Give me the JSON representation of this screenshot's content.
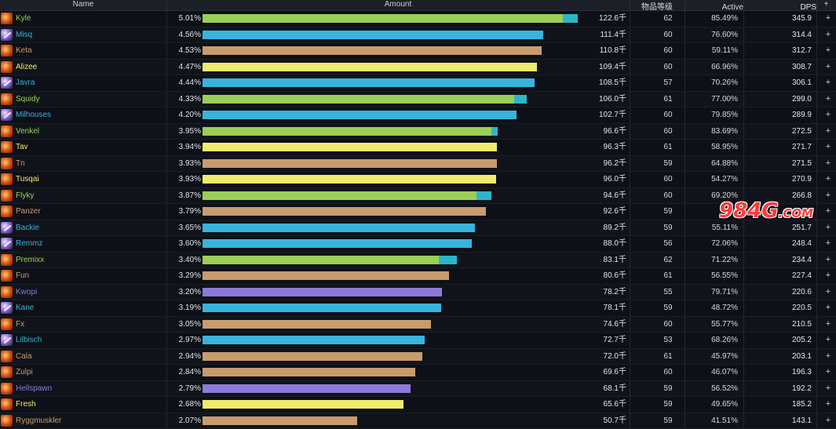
{
  "colors": {
    "hunter": "#9bcf55",
    "mage": "#38b4dc",
    "warrior": "#c79c6e",
    "rogue": "#f0eb6d",
    "warlock": "#8d7ad8",
    "extra": "#2bb7c9",
    "watermark": "#ff3a3a"
  },
  "header": {
    "name": "Name",
    "amount": "Amount",
    "ilvl": "物品等级",
    "active": "Active",
    "dps": "DPS",
    "plus": "+"
  },
  "rows": [
    {
      "name": "Kyle",
      "pct": "5.01%",
      "amount": "122.6千",
      "ilvl": "62",
      "active": "85.49%",
      "dps": "345.9",
      "cls": "hunter",
      "icon": "fire-icon",
      "value": 122.6,
      "ext": 5.0
    },
    {
      "name": "Misq",
      "pct": "4.56%",
      "amount": "111.4千",
      "ilvl": "60",
      "active": "76.60%",
      "dps": "314.4",
      "cls": "mage",
      "icon": "bolt-icon",
      "value": 111.4,
      "ext": 0
    },
    {
      "name": "Keta",
      "pct": "4.53%",
      "amount": "110.8千",
      "ilvl": "60",
      "active": "59.11%",
      "dps": "312.7",
      "cls": "warrior",
      "icon": "fire-icon",
      "value": 110.8,
      "ext": 0
    },
    {
      "name": "Alizee",
      "pct": "4.47%",
      "amount": "109.4千",
      "ilvl": "60",
      "active": "66.96%",
      "dps": "308.7",
      "cls": "rogue",
      "icon": "fire-icon",
      "value": 109.4,
      "ext": 0
    },
    {
      "name": "Javra",
      "pct": "4.44%",
      "amount": "108.5千",
      "ilvl": "57",
      "active": "70.26%",
      "dps": "306.1",
      "cls": "mage",
      "icon": "bolt-icon",
      "value": 108.5,
      "ext": 0
    },
    {
      "name": "Squidy",
      "pct": "4.33%",
      "amount": "106.0千",
      "ilvl": "61",
      "active": "77.00%",
      "dps": "299.0",
      "cls": "hunter",
      "icon": "fire-icon",
      "value": 106.0,
      "ext": 4.0
    },
    {
      "name": "Milhouses",
      "pct": "4.20%",
      "amount": "102.7千",
      "ilvl": "60",
      "active": "79.85%",
      "dps": "289.9",
      "cls": "mage",
      "icon": "bolt-icon",
      "value": 102.7,
      "ext": 0
    },
    {
      "name": "Venkel",
      "pct": "3.95%",
      "amount": "96.6千",
      "ilvl": "60",
      "active": "83.69%",
      "dps": "272.5",
      "cls": "hunter",
      "icon": "fire-icon",
      "value": 96.6,
      "ext": 2.0
    },
    {
      "name": "Tav",
      "pct": "3.94%",
      "amount": "96.3千",
      "ilvl": "61",
      "active": "58.95%",
      "dps": "271.7",
      "cls": "rogue",
      "icon": "fire-icon",
      "value": 96.3,
      "ext": 0
    },
    {
      "name": "Tn",
      "pct": "3.93%",
      "amount": "96.2千",
      "ilvl": "59",
      "active": "64.88%",
      "dps": "271.5",
      "cls": "warrior",
      "icon": "fire-icon",
      "value": 96.2,
      "ext": 0
    },
    {
      "name": "Tusqai",
      "pct": "3.93%",
      "amount": "96.0千",
      "ilvl": "60",
      "active": "54.27%",
      "dps": "270.9",
      "cls": "rogue",
      "icon": "fire-icon",
      "value": 96.0,
      "ext": 0
    },
    {
      "name": "Flyky",
      "pct": "3.87%",
      "amount": "94.6千",
      "ilvl": "60",
      "active": "69.20%",
      "dps": "266.8",
      "cls": "hunter",
      "icon": "fire-icon",
      "value": 94.6,
      "ext": 5.0
    },
    {
      "name": "Panzer",
      "pct": "3.79%",
      "amount": "92.6千",
      "ilvl": "59",
      "active": "6",
      "dps": "26",
      "cls": "warrior",
      "icon": "fire-icon",
      "value": 92.6,
      "ext": 0
    },
    {
      "name": "Backie",
      "pct": "3.65%",
      "amount": "89.2千",
      "ilvl": "59",
      "active": "55.11%",
      "dps": "251.7",
      "cls": "mage",
      "icon": "bolt-icon",
      "value": 89.2,
      "ext": 0
    },
    {
      "name": "Remmz",
      "pct": "3.60%",
      "amount": "88.0千",
      "ilvl": "56",
      "active": "72.06%",
      "dps": "248.4",
      "cls": "mage",
      "icon": "bolt-icon",
      "value": 88.0,
      "ext": 0
    },
    {
      "name": "Premixx",
      "pct": "3.40%",
      "amount": "83.1千",
      "ilvl": "62",
      "active": "71.22%",
      "dps": "234.4",
      "cls": "hunter",
      "icon": "fire-icon",
      "value": 83.1,
      "ext": 6.0
    },
    {
      "name": "Fun",
      "pct": "3.29%",
      "amount": "80.6千",
      "ilvl": "61",
      "active": "56.55%",
      "dps": "227.4",
      "cls": "warrior",
      "icon": "fire-icon",
      "value": 80.6,
      "ext": 0
    },
    {
      "name": "Kwopi",
      "pct": "3.20%",
      "amount": "78.2千",
      "ilvl": "55",
      "active": "79.71%",
      "dps": "220.6",
      "cls": "warlock",
      "icon": "fire-icon",
      "value": 78.2,
      "ext": 0
    },
    {
      "name": "Kane",
      "pct": "3.19%",
      "amount": "78.1千",
      "ilvl": "59",
      "active": "48.72%",
      "dps": "220.5",
      "cls": "mage",
      "icon": "bolt-icon",
      "value": 78.1,
      "ext": 0
    },
    {
      "name": "Fx",
      "pct": "3.05%",
      "amount": "74.6千",
      "ilvl": "60",
      "active": "55.77%",
      "dps": "210.5",
      "cls": "warrior",
      "icon": "fire-icon",
      "value": 74.6,
      "ext": 0
    },
    {
      "name": "Lilbisch",
      "pct": "2.97%",
      "amount": "72.7千",
      "ilvl": "53",
      "active": "68.26%",
      "dps": "205.2",
      "cls": "mage",
      "icon": "bolt-icon",
      "value": 72.7,
      "ext": 0
    },
    {
      "name": "Cala",
      "pct": "2.94%",
      "amount": "72.0千",
      "ilvl": "61",
      "active": "45.97%",
      "dps": "203.1",
      "cls": "warrior",
      "icon": "fire-icon",
      "value": 72.0,
      "ext": 0
    },
    {
      "name": "Zulpi",
      "pct": "2.84%",
      "amount": "69.6千",
      "ilvl": "60",
      "active": "46.07%",
      "dps": "196.3",
      "cls": "warrior",
      "icon": "fire-icon",
      "value": 69.6,
      "ext": 0
    },
    {
      "name": "Hellspawn",
      "pct": "2.79%",
      "amount": "68.1千",
      "ilvl": "59",
      "active": "56.52%",
      "dps": "192.2",
      "cls": "warlock",
      "icon": "fire-icon",
      "value": 68.1,
      "ext": 0
    },
    {
      "name": "Fresh",
      "pct": "2.68%",
      "amount": "65.6千",
      "ilvl": "59",
      "active": "49.65%",
      "dps": "185.2",
      "cls": "rogue",
      "icon": "fire-icon",
      "value": 65.6,
      "ext": 0
    },
    {
      "name": "Ryggmuskler",
      "pct": "2.07%",
      "amount": "50.7千",
      "ilvl": "59",
      "active": "41.51%",
      "dps": "143.1",
      "cls": "warrior",
      "icon": "fire-icon",
      "value": 50.7,
      "ext": 0
    }
  ],
  "bar_max_value": 127.6,
  "watermark": {
    "main": "984G",
    "sub": ".COM"
  }
}
